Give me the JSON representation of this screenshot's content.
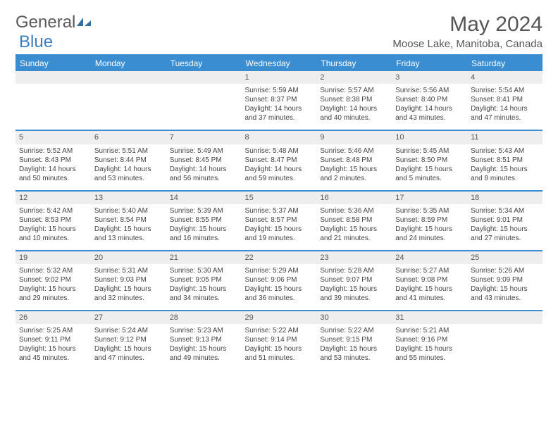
{
  "logo": {
    "text1": "General",
    "text2": "Blue"
  },
  "title": "May 2024",
  "location": "Moose Lake, Manitoba, Canada",
  "colors": {
    "header_bg": "#3a8dd0",
    "daynum_bg": "#eeeeee",
    "border": "#3a8dd0",
    "text": "#444444"
  },
  "dayHeaders": [
    "Sunday",
    "Monday",
    "Tuesday",
    "Wednesday",
    "Thursday",
    "Friday",
    "Saturday"
  ],
  "weeks": [
    [
      null,
      null,
      null,
      {
        "n": "1",
        "sr": "5:59 AM",
        "ss": "8:37 PM",
        "dl": "14 hours and 37 minutes."
      },
      {
        "n": "2",
        "sr": "5:57 AM",
        "ss": "8:38 PM",
        "dl": "14 hours and 40 minutes."
      },
      {
        "n": "3",
        "sr": "5:56 AM",
        "ss": "8:40 PM",
        "dl": "14 hours and 43 minutes."
      },
      {
        "n": "4",
        "sr": "5:54 AM",
        "ss": "8:41 PM",
        "dl": "14 hours and 47 minutes."
      }
    ],
    [
      {
        "n": "5",
        "sr": "5:52 AM",
        "ss": "8:43 PM",
        "dl": "14 hours and 50 minutes."
      },
      {
        "n": "6",
        "sr": "5:51 AM",
        "ss": "8:44 PM",
        "dl": "14 hours and 53 minutes."
      },
      {
        "n": "7",
        "sr": "5:49 AM",
        "ss": "8:45 PM",
        "dl": "14 hours and 56 minutes."
      },
      {
        "n": "8",
        "sr": "5:48 AM",
        "ss": "8:47 PM",
        "dl": "14 hours and 59 minutes."
      },
      {
        "n": "9",
        "sr": "5:46 AM",
        "ss": "8:48 PM",
        "dl": "15 hours and 2 minutes."
      },
      {
        "n": "10",
        "sr": "5:45 AM",
        "ss": "8:50 PM",
        "dl": "15 hours and 5 minutes."
      },
      {
        "n": "11",
        "sr": "5:43 AM",
        "ss": "8:51 PM",
        "dl": "15 hours and 8 minutes."
      }
    ],
    [
      {
        "n": "12",
        "sr": "5:42 AM",
        "ss": "8:53 PM",
        "dl": "15 hours and 10 minutes."
      },
      {
        "n": "13",
        "sr": "5:40 AM",
        "ss": "8:54 PM",
        "dl": "15 hours and 13 minutes."
      },
      {
        "n": "14",
        "sr": "5:39 AM",
        "ss": "8:55 PM",
        "dl": "15 hours and 16 minutes."
      },
      {
        "n": "15",
        "sr": "5:37 AM",
        "ss": "8:57 PM",
        "dl": "15 hours and 19 minutes."
      },
      {
        "n": "16",
        "sr": "5:36 AM",
        "ss": "8:58 PM",
        "dl": "15 hours and 21 minutes."
      },
      {
        "n": "17",
        "sr": "5:35 AM",
        "ss": "8:59 PM",
        "dl": "15 hours and 24 minutes."
      },
      {
        "n": "18",
        "sr": "5:34 AM",
        "ss": "9:01 PM",
        "dl": "15 hours and 27 minutes."
      }
    ],
    [
      {
        "n": "19",
        "sr": "5:32 AM",
        "ss": "9:02 PM",
        "dl": "15 hours and 29 minutes."
      },
      {
        "n": "20",
        "sr": "5:31 AM",
        "ss": "9:03 PM",
        "dl": "15 hours and 32 minutes."
      },
      {
        "n": "21",
        "sr": "5:30 AM",
        "ss": "9:05 PM",
        "dl": "15 hours and 34 minutes."
      },
      {
        "n": "22",
        "sr": "5:29 AM",
        "ss": "9:06 PM",
        "dl": "15 hours and 36 minutes."
      },
      {
        "n": "23",
        "sr": "5:28 AM",
        "ss": "9:07 PM",
        "dl": "15 hours and 39 minutes."
      },
      {
        "n": "24",
        "sr": "5:27 AM",
        "ss": "9:08 PM",
        "dl": "15 hours and 41 minutes."
      },
      {
        "n": "25",
        "sr": "5:26 AM",
        "ss": "9:09 PM",
        "dl": "15 hours and 43 minutes."
      }
    ],
    [
      {
        "n": "26",
        "sr": "5:25 AM",
        "ss": "9:11 PM",
        "dl": "15 hours and 45 minutes."
      },
      {
        "n": "27",
        "sr": "5:24 AM",
        "ss": "9:12 PM",
        "dl": "15 hours and 47 minutes."
      },
      {
        "n": "28",
        "sr": "5:23 AM",
        "ss": "9:13 PM",
        "dl": "15 hours and 49 minutes."
      },
      {
        "n": "29",
        "sr": "5:22 AM",
        "ss": "9:14 PM",
        "dl": "15 hours and 51 minutes."
      },
      {
        "n": "30",
        "sr": "5:22 AM",
        "ss": "9:15 PM",
        "dl": "15 hours and 53 minutes."
      },
      {
        "n": "31",
        "sr": "5:21 AM",
        "ss": "9:16 PM",
        "dl": "15 hours and 55 minutes."
      },
      null
    ]
  ],
  "labels": {
    "sunrise": "Sunrise:",
    "sunset": "Sunset:",
    "daylight": "Daylight:"
  }
}
